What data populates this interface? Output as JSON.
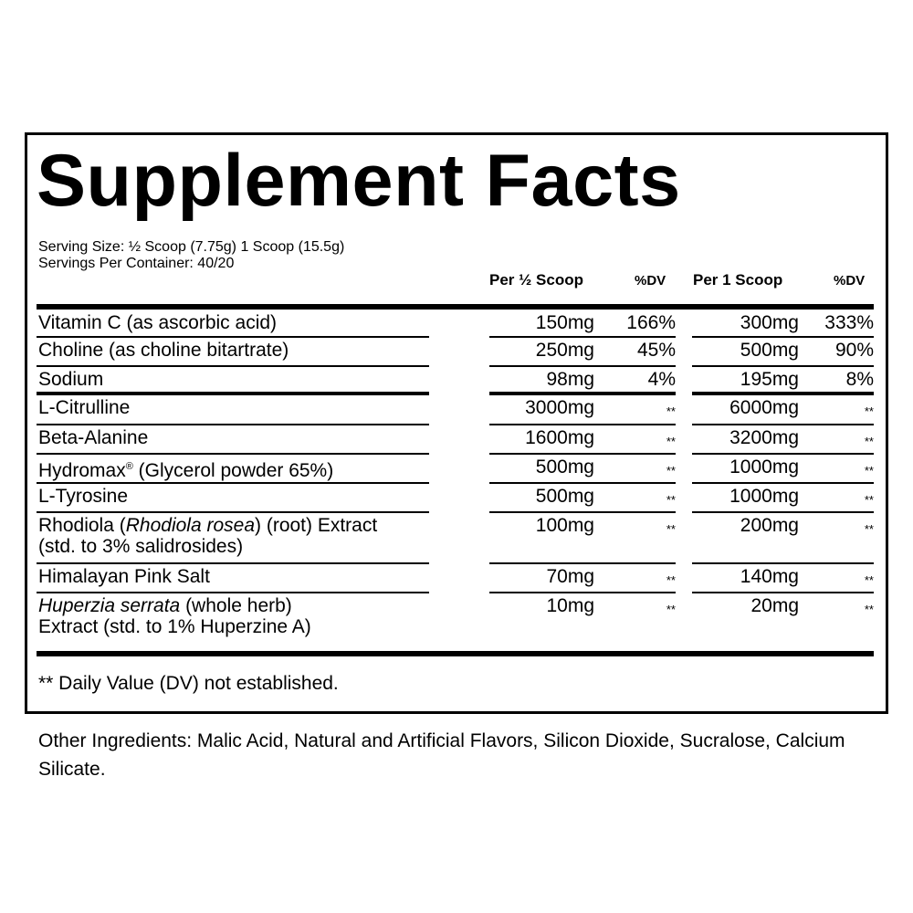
{
  "title": "Supplement Facts",
  "serving_size": "Serving Size: ½ Scoop (7.75g) 1 Scoop (15.5g)",
  "servings_per_container": "Servings Per Container: 40/20",
  "headers": {
    "per_half": "Per ½ Scoop",
    "dv1": "%DV",
    "per_one": "Per 1 Scoop",
    "dv2": "%DV"
  },
  "rows": [
    {
      "name": [
        "Vitamin C (as ascorbic acid)"
      ],
      "a1": "150mg",
      "d1": "166%",
      "a2": "300mg",
      "d2": "333%"
    },
    {
      "name": [
        "Choline (as choline bitartrate)"
      ],
      "a1": "250mg",
      "d1": "45%",
      "a2": "500mg",
      "d2": "90%"
    },
    {
      "name": [
        "Sodium"
      ],
      "a1": "98mg",
      "d1": "4%",
      "a2": "195mg",
      "d2": "8%"
    },
    {
      "name": [
        "L-Citrulline"
      ],
      "a1": "3000mg",
      "d1": "**",
      "a2": "6000mg",
      "d2": "**"
    },
    {
      "name": [
        "Beta-Alanine"
      ],
      "a1": "1600mg",
      "d1": "**",
      "a2": "3200mg",
      "d2": "**"
    },
    {
      "name": [
        "Hydromax",
        "®",
        " (Glycerol powder 65%)"
      ],
      "a1": "500mg",
      "d1": "**",
      "a2": "1000mg",
      "d2": "**"
    },
    {
      "name": [
        "L-Tyrosine"
      ],
      "a1": "500mg",
      "d1": "**",
      "a2": "1000mg",
      "d2": "**"
    },
    {
      "name": [
        "Rhodiola (",
        "Rhodiola rosea",
        ") (root) Extract",
        "(std. to 3% salidrosides)"
      ],
      "a1": "100mg",
      "d1": "**",
      "a2": "200mg",
      "d2": "**"
    },
    {
      "name": [
        "Himalayan Pink Salt"
      ],
      "a1": "70mg",
      "d1": "**",
      "a2": "140mg",
      "d2": "**"
    },
    {
      "name": [
        "Huperzia serrata",
        " (whole herb)",
        "Extract (std. to 1% Huperzine A)"
      ],
      "a1": "10mg",
      "d1": "**",
      "a2": "20mg",
      "d2": "**"
    }
  ],
  "footnote": "** Daily Value (DV) not established.",
  "other_ingredients": "Other Ingredients: Malic Acid, Natural and Artificial Flavors, Silicon Dioxide, Sucralose, Calcium Silicate."
}
